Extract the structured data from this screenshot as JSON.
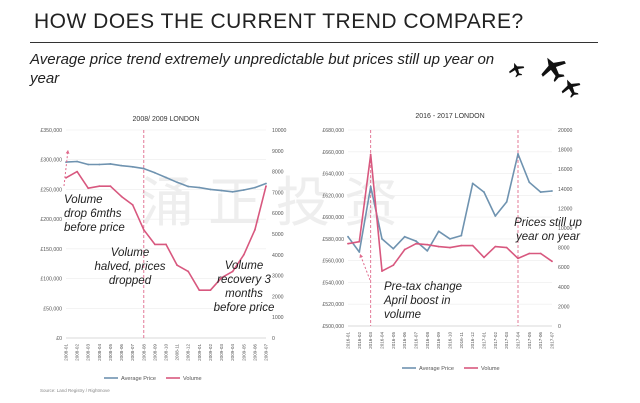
{
  "header": {
    "title": "HOW DOES THE CURRENT TREND COMPARE?",
    "subtitle": "Average price trend extremely unpredictable but prices still up year on year"
  },
  "watermark": "涌正投资",
  "source_note": "Source: Land Registry / Rightmove",
  "colors": {
    "average_price": "#6f93b0",
    "volume": "#d8587f",
    "marker": "#e06a8c"
  },
  "icons": [
    "airplane-icon",
    "airplane-icon",
    "airplane-icon"
  ],
  "chart_data": [
    {
      "type": "line",
      "title": "2008/ 2009 LONDON",
      "x": [
        "2008-01",
        "2008-02",
        "2008-03",
        "2008-04",
        "2008-05",
        "2008-06",
        "2008-07",
        "2008-08",
        "2008-09",
        "2008-10",
        "2008-11",
        "2008-12",
        "2009-01",
        "2009-02",
        "2009-03",
        "2009-04",
        "2009-05",
        "2009-06",
        "2009-07"
      ],
      "series": [
        {
          "name": "Average Price",
          "axis": "left",
          "values": [
            296000,
            297000,
            292000,
            292000,
            293000,
            290000,
            288000,
            285000,
            278000,
            270000,
            262000,
            255000,
            253000,
            250000,
            248000,
            246000,
            249000,
            253000,
            260000
          ]
        },
        {
          "name": "Volume",
          "axis": "right",
          "values": [
            7700,
            8000,
            7200,
            7300,
            7300,
            6800,
            6400,
            5200,
            4500,
            4500,
            3500,
            3200,
            2300,
            2300,
            2900,
            3200,
            4000,
            5200,
            7300
          ]
        }
      ],
      "ylim_left": [
        0,
        350000
      ],
      "yticks_left": [
        "£0",
        "£50,000",
        "£100,000",
        "£150,000",
        "£200,000",
        "£250,000",
        "£300,000",
        "£350,000"
      ],
      "ylim_right": [
        0,
        10000
      ],
      "yticks_right": [
        "0",
        "1000",
        "2000",
        "3000",
        "4000",
        "5000",
        "6000",
        "7000",
        "8000",
        "9000",
        "10000"
      ],
      "annotations": [
        {
          "id": "a1",
          "lines": [
            "Volume",
            "drop 6mths",
            "before price"
          ]
        },
        {
          "id": "a2",
          "lines": [
            "Volume",
            "halved, prices",
            "dropped"
          ]
        },
        {
          "id": "a3",
          "lines": [
            "Volume",
            "recovery 3",
            "months",
            "before price"
          ]
        }
      ],
      "markers": [
        "2008-08"
      ],
      "legend": [
        "Average Price",
        "Volume"
      ]
    },
    {
      "type": "line",
      "title": "2016 - 2017 LONDON",
      "x": [
        "2016-01",
        "2016-02",
        "2016-03",
        "2016-04",
        "2016-05",
        "2016-06",
        "2016-07",
        "2016-08",
        "2016-09",
        "2016-10",
        "2016-11",
        "2016-12",
        "2017-01",
        "2017-02",
        "2017-03",
        "2017-04",
        "2017-05",
        "2017-06",
        "2017-07"
      ],
      "series": [
        {
          "name": "Average Price",
          "axis": "left",
          "values": [
            582000,
            568000,
            628000,
            580000,
            571000,
            582000,
            578000,
            569000,
            587000,
            580000,
            583000,
            631000,
            623000,
            601000,
            614000,
            658000,
            632000,
            623000,
            624000
          ]
        },
        {
          "name": "Volume",
          "axis": "right",
          "values": [
            8400,
            8600,
            17500,
            5600,
            6200,
            7800,
            8400,
            8300,
            8100,
            8000,
            8200,
            8200,
            7000,
            8100,
            8000,
            6900,
            7400,
            7400,
            6600
          ]
        }
      ],
      "ylim_left": [
        500000,
        680000
      ],
      "yticks_left": [
        "£500,000",
        "£520,000",
        "£540,000",
        "£560,000",
        "£580,000",
        "£600,000",
        "£620,000",
        "£640,000",
        "£660,000",
        "£680,000"
      ],
      "ylim_right": [
        0,
        20000
      ],
      "yticks_right": [
        "0",
        "2000",
        "4000",
        "6000",
        "8000",
        "10000",
        "12000",
        "14000",
        "16000",
        "18000",
        "20000"
      ],
      "annotations": [
        {
          "id": "b1",
          "lines": [
            "Pre-tax change",
            "April boost in",
            "volume"
          ]
        },
        {
          "id": "b2",
          "lines": [
            "Prices still up",
            "year on year"
          ]
        }
      ],
      "markers": [
        "2016-03",
        "2017-04"
      ],
      "legend": [
        "Average Price",
        "Volume"
      ]
    }
  ]
}
